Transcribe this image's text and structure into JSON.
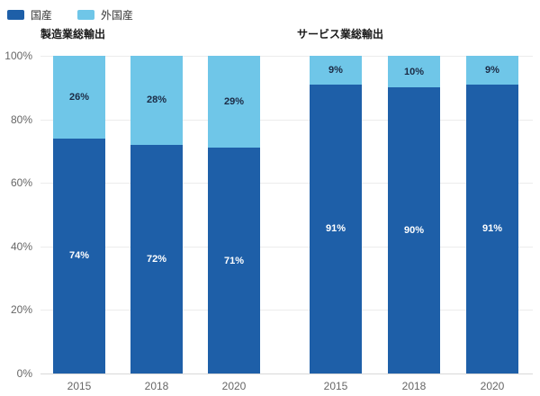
{
  "legend": {
    "items": [
      {
        "label": "国産",
        "color": "#1e5fa8"
      },
      {
        "label": "外国産",
        "color": "#6fc6e8"
      }
    ]
  },
  "colors": {
    "domestic": "#1e5fa8",
    "foreign": "#6fc6e8",
    "grid": "#ececec",
    "axis_line": "#d9d9d9",
    "tick_text": "#666666",
    "bar_label_on_dark": "#ffffff",
    "bar_label_on_light": "#1c2b45"
  },
  "axis": {
    "yticks": [
      {
        "label": "100%",
        "value": 100
      },
      {
        "label": "80%",
        "value": 80
      },
      {
        "label": "60%",
        "value": 60
      },
      {
        "label": "40%",
        "value": 40
      },
      {
        "label": "20%",
        "value": 20
      },
      {
        "label": "0%",
        "value": 0
      }
    ],
    "grid_values": [
      100,
      80,
      60,
      40,
      20
    ]
  },
  "chart_data": [
    {
      "type": "bar",
      "stacked": true,
      "title": "製造業総輸出",
      "categories": [
        "2015",
        "2018",
        "2020"
      ],
      "series": [
        {
          "name": "国産",
          "color": "#1e5fa8",
          "values": [
            74,
            72,
            71
          ],
          "labels": [
            "74%",
            "72%",
            "71%"
          ]
        },
        {
          "name": "外国産",
          "color": "#6fc6e8",
          "values": [
            26,
            28,
            29
          ],
          "labels": [
            "26%",
            "28%",
            "29%"
          ]
        }
      ],
      "xlabel": "",
      "ylabel": "",
      "ylim": [
        0,
        100
      ],
      "grid": true,
      "legend_position": "top-left"
    },
    {
      "type": "bar",
      "stacked": true,
      "title": "サービス業総輸出",
      "categories": [
        "2015",
        "2018",
        "2020"
      ],
      "series": [
        {
          "name": "国産",
          "color": "#1e5fa8",
          "values": [
            91,
            90,
            91
          ],
          "labels": [
            "91%",
            "90%",
            "91%"
          ]
        },
        {
          "name": "外国産",
          "color": "#6fc6e8",
          "values": [
            9,
            10,
            9
          ],
          "labels": [
            "9%",
            "10%",
            "9%"
          ]
        }
      ],
      "xlabel": "",
      "ylabel": "",
      "ylim": [
        0,
        100
      ],
      "grid": true,
      "legend_position": "top-left"
    }
  ]
}
